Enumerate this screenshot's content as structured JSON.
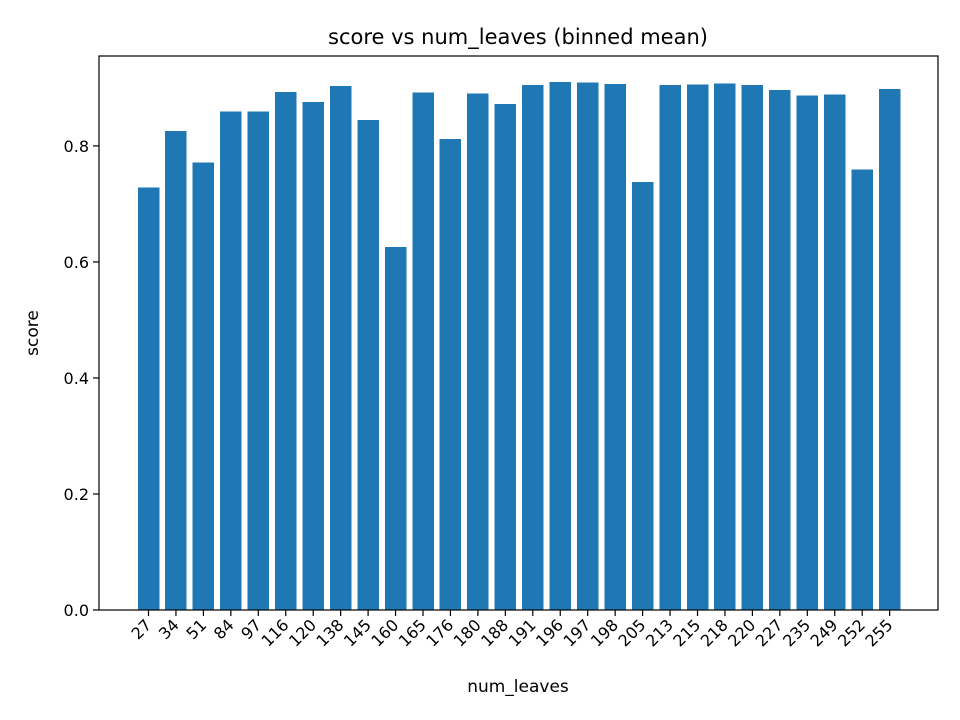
{
  "chart_data": {
    "type": "bar",
    "title": "score vs num_leaves (binned mean)",
    "xlabel": "num_leaves",
    "ylabel": "score",
    "categories": [
      "27",
      "34",
      "51",
      "84",
      "97",
      "116",
      "120",
      "138",
      "145",
      "160",
      "165",
      "176",
      "180",
      "188",
      "191",
      "196",
      "197",
      "198",
      "205",
      "213",
      "215",
      "218",
      "220",
      "227",
      "235",
      "249",
      "252",
      "255"
    ],
    "values": [
      0.728,
      0.826,
      0.771,
      0.859,
      0.859,
      0.893,
      0.876,
      0.903,
      0.845,
      0.626,
      0.892,
      0.812,
      0.89,
      0.872,
      0.905,
      0.91,
      0.909,
      0.907,
      0.738,
      0.905,
      0.906,
      0.908,
      0.905,
      0.896,
      0.887,
      0.889,
      0.759,
      0.898
    ],
    "ylim": [
      0,
      0.955
    ],
    "yticks": [
      0.0,
      0.2,
      0.4,
      0.6,
      0.8
    ],
    "ytick_labels": [
      "0.0",
      "0.2",
      "0.4",
      "0.6",
      "0.8"
    ],
    "bar_color": "#1f77b4",
    "grid": false
  }
}
